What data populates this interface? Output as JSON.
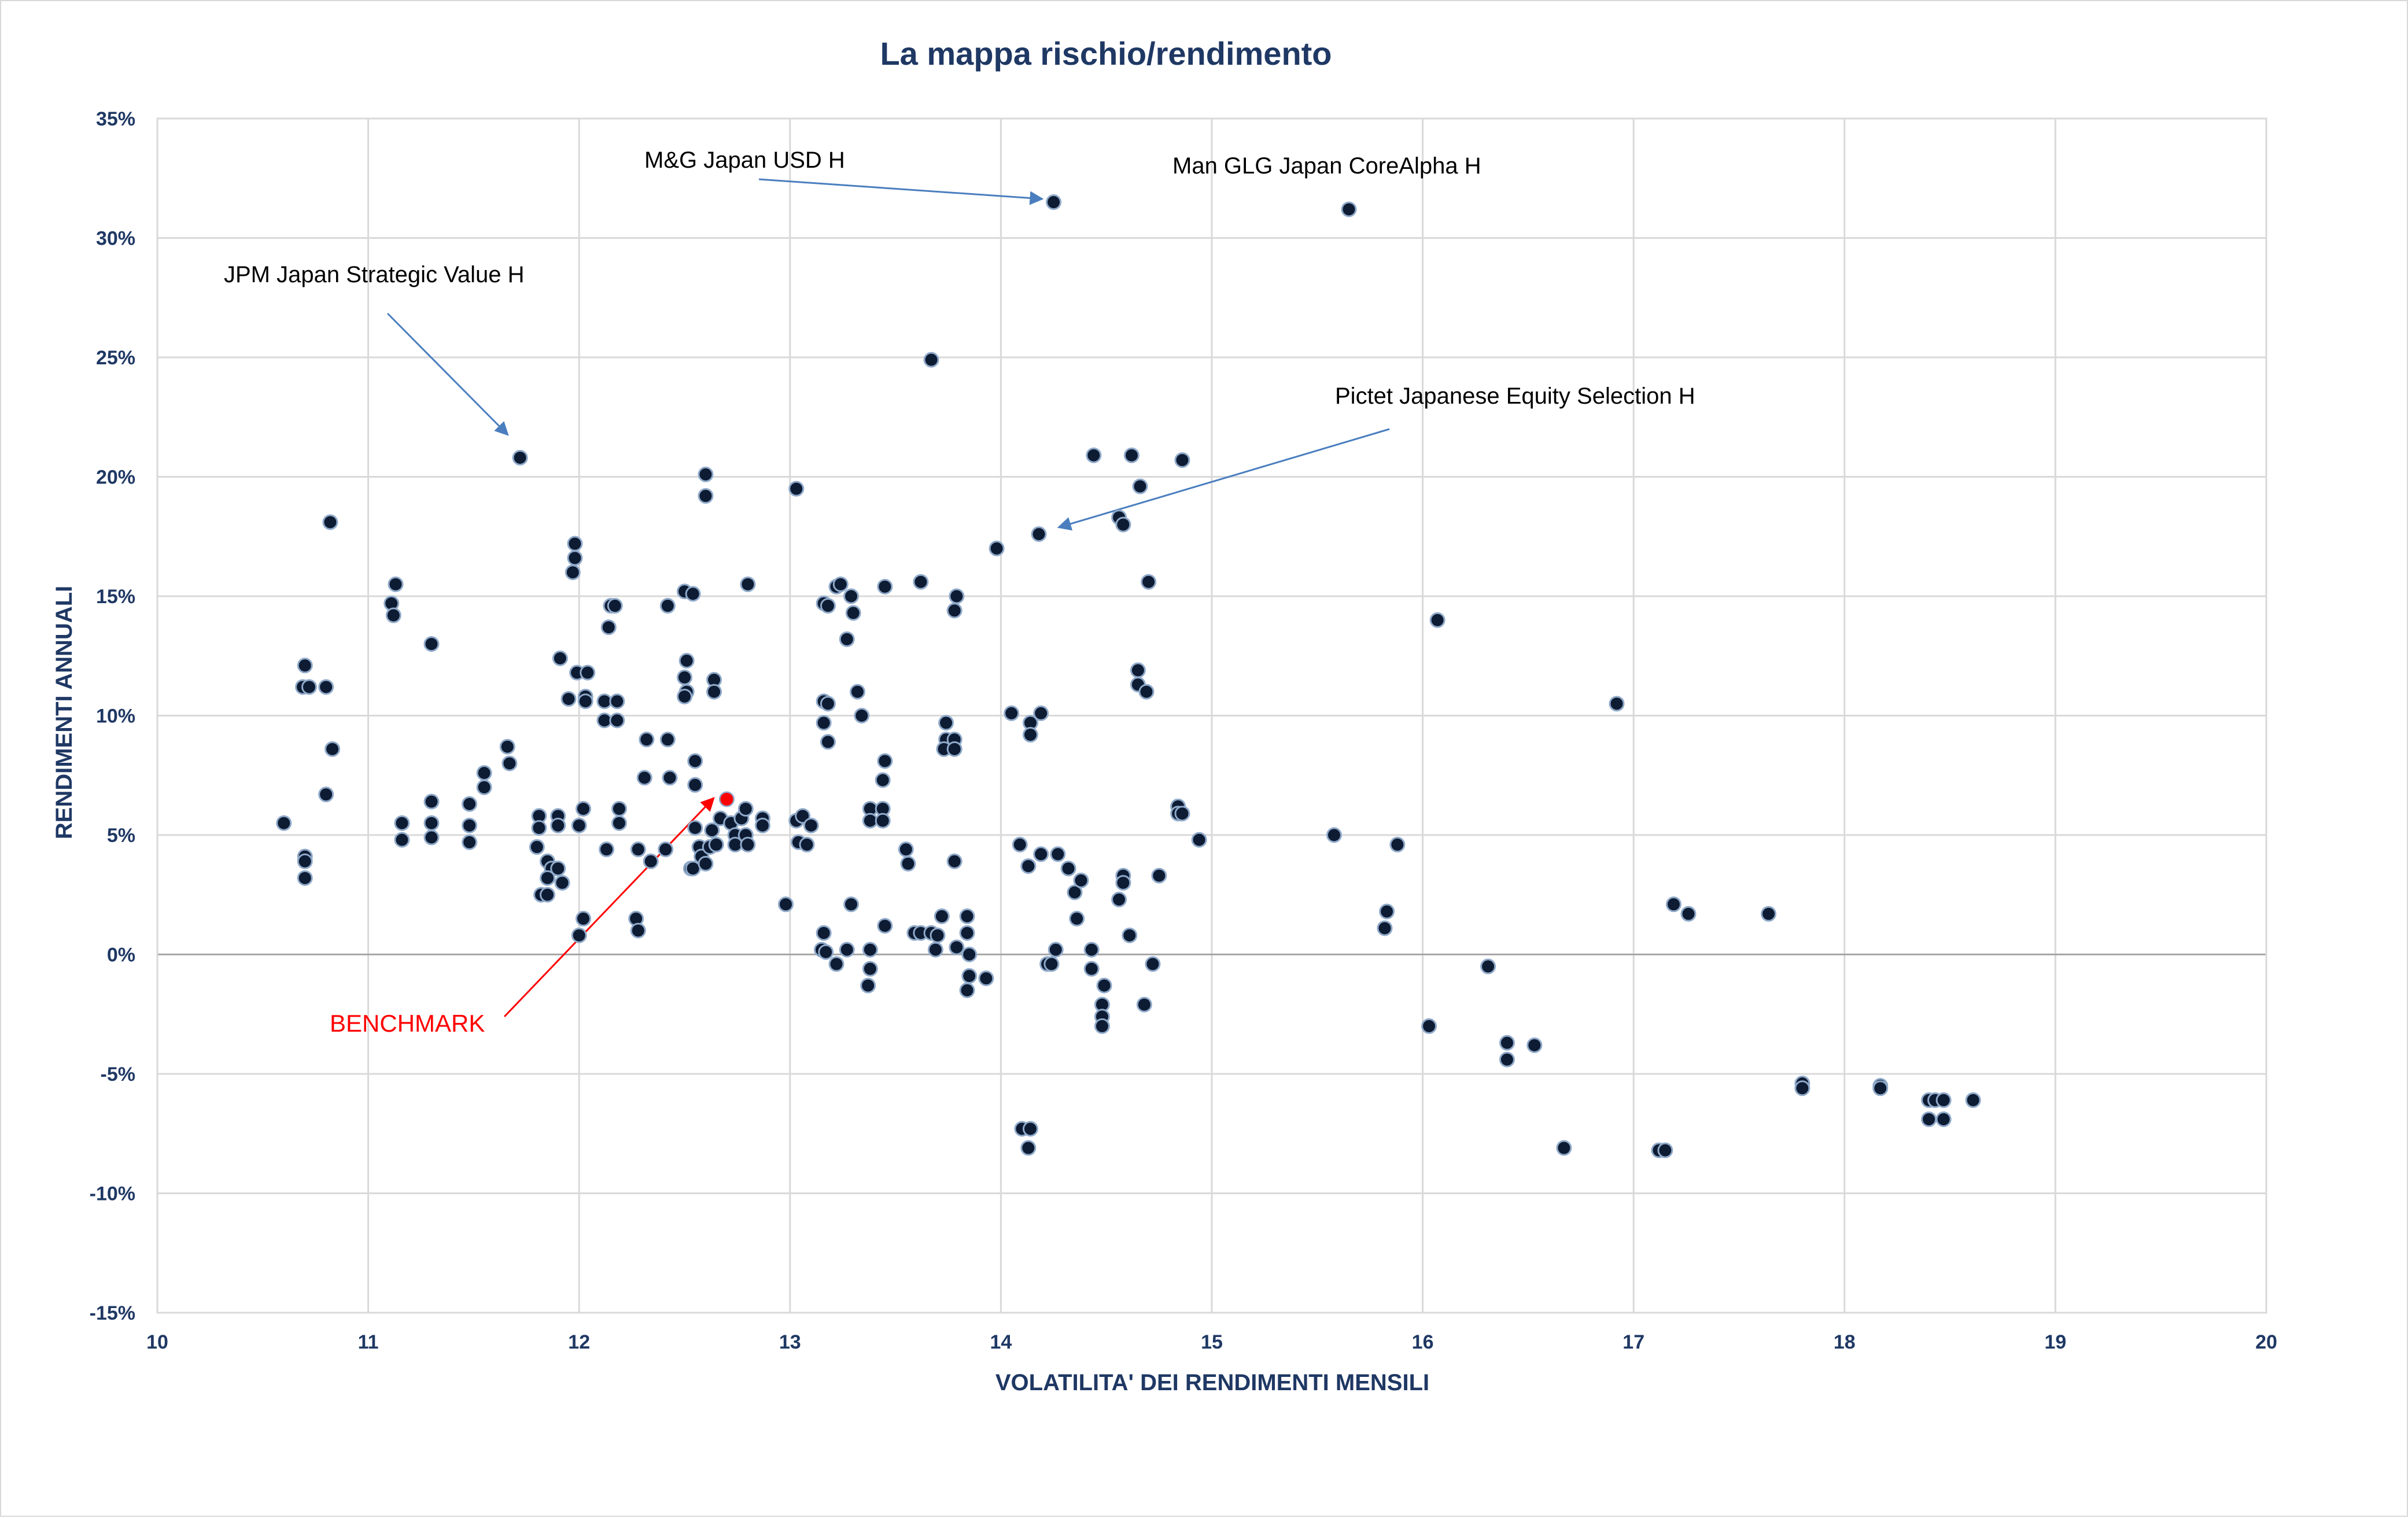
{
  "chart_data": {
    "type": "scatter",
    "title": "La mappa rischio/rendimento",
    "xlabel": "VOLATILITA' DEI RENDIMENTI MENSILI",
    "ylabel": "RENDIMENTI ANNUALI",
    "xlim": [
      10,
      20
    ],
    "ylim": [
      -15,
      35
    ],
    "x_ticks": [
      "10",
      "11",
      "12",
      "13",
      "14",
      "15",
      "16",
      "17",
      "18",
      "19",
      "20"
    ],
    "y_ticks": [
      "-15%",
      "-10%",
      "-5%",
      "0%",
      "5%",
      "10%",
      "15%",
      "20%",
      "25%",
      "30%",
      "35%"
    ],
    "grid": true,
    "colors": {
      "point": "#0d1b33",
      "point_outline": "#8fa9c9",
      "benchmark": "#ff0000",
      "annotation_arrow": "#4a7ebf",
      "title": "#1f3864"
    },
    "annotations": [
      {
        "id": "mg",
        "text": "M&G Japan USD H",
        "color": "black",
        "target": [
          14.25,
          31.5
        ]
      },
      {
        "id": "man",
        "text": "Man GLG Japan CoreAlpha H",
        "color": "black",
        "target": [
          15.65,
          31.2
        ]
      },
      {
        "id": "jpm",
        "text": "JPM Japan Strategic Value H",
        "color": "black",
        "target": [
          11.72,
          20.8
        ]
      },
      {
        "id": "pictet",
        "text": "Pictet Japanese Equity Selection H",
        "color": "black",
        "target": [
          14.18,
          17.6
        ]
      },
      {
        "id": "bench",
        "text": "BENCHMARK",
        "color": "red",
        "target": [
          12.7,
          6.5
        ]
      }
    ],
    "series": [
      {
        "points": [
          [
            14.25,
            31.5
          ],
          [
            15.65,
            31.2
          ],
          [
            13.67,
            24.9
          ],
          [
            11.72,
            20.8
          ],
          [
            12.6,
            20.1
          ],
          [
            12.6,
            19.2
          ],
          [
            13.03,
            19.5
          ],
          [
            14.18,
            17.6
          ],
          [
            14.44,
            20.9
          ],
          [
            14.62,
            20.9
          ],
          [
            14.86,
            20.7
          ],
          [
            14.66,
            19.6
          ],
          [
            14.56,
            18.3
          ],
          [
            14.58,
            18.0
          ],
          [
            13.98,
            17.0
          ],
          [
            14.7,
            15.6
          ],
          [
            10.82,
            18.1
          ],
          [
            11.98,
            17.2
          ],
          [
            11.98,
            16.6
          ],
          [
            11.97,
            16.0
          ],
          [
            11.13,
            15.5
          ],
          [
            11.11,
            14.7
          ],
          [
            11.12,
            14.2
          ],
          [
            11.3,
            13.0
          ],
          [
            12.15,
            14.6
          ],
          [
            12.17,
            14.6
          ],
          [
            12.14,
            13.7
          ],
          [
            12.42,
            14.6
          ],
          [
            12.5,
            15.2
          ],
          [
            12.54,
            15.1
          ],
          [
            12.8,
            15.5
          ],
          [
            13.22,
            15.4
          ],
          [
            13.24,
            15.5
          ],
          [
            13.29,
            15.0
          ],
          [
            13.16,
            14.7
          ],
          [
            13.18,
            14.6
          ],
          [
            13.3,
            14.3
          ],
          [
            13.27,
            13.2
          ],
          [
            13.45,
            15.4
          ],
          [
            13.62,
            15.6
          ],
          [
            13.79,
            15.0
          ],
          [
            13.78,
            14.4
          ],
          [
            11.91,
            12.4
          ],
          [
            11.99,
            11.8
          ],
          [
            12.04,
            11.8
          ],
          [
            11.95,
            10.7
          ],
          [
            12.03,
            10.8
          ],
          [
            12.03,
            10.6
          ],
          [
            12.12,
            10.6
          ],
          [
            12.18,
            10.6
          ],
          [
            12.12,
            9.8
          ],
          [
            12.18,
            9.8
          ],
          [
            12.51,
            12.3
          ],
          [
            12.5,
            11.6
          ],
          [
            12.51,
            11.0
          ],
          [
            12.5,
            10.8
          ],
          [
            12.64,
            11.5
          ],
          [
            12.64,
            11.0
          ],
          [
            10.7,
            12.1
          ],
          [
            10.69,
            11.2
          ],
          [
            10.72,
            11.2
          ],
          [
            10.8,
            11.2
          ],
          [
            10.83,
            8.6
          ],
          [
            10.8,
            6.7
          ],
          [
            10.6,
            5.5
          ],
          [
            10.7,
            4.1
          ],
          [
            10.7,
            3.9
          ],
          [
            10.7,
            3.2
          ],
          [
            11.16,
            5.5
          ],
          [
            11.16,
            4.8
          ],
          [
            11.3,
            6.4
          ],
          [
            11.3,
            5.5
          ],
          [
            11.3,
            4.9
          ],
          [
            11.48,
            6.3
          ],
          [
            11.48,
            5.4
          ],
          [
            11.48,
            4.7
          ],
          [
            11.55,
            7.6
          ],
          [
            11.55,
            7.0
          ],
          [
            11.66,
            8.7
          ],
          [
            11.67,
            8.0
          ],
          [
            11.81,
            5.8
          ],
          [
            11.81,
            5.3
          ],
          [
            11.8,
            4.5
          ],
          [
            11.82,
            2.5
          ],
          [
            11.85,
            2.5
          ],
          [
            11.85,
            3.9
          ],
          [
            11.87,
            3.6
          ],
          [
            11.85,
            3.2
          ],
          [
            11.9,
            3.6
          ],
          [
            11.92,
            3.0
          ],
          [
            11.9,
            5.8
          ],
          [
            11.9,
            5.4
          ],
          [
            12.02,
            6.1
          ],
          [
            12.0,
            5.4
          ],
          [
            12.02,
            1.5
          ],
          [
            12.0,
            0.8
          ],
          [
            12.13,
            4.4
          ],
          [
            12.19,
            6.1
          ],
          [
            12.19,
            5.5
          ],
          [
            12.28,
            4.4
          ],
          [
            12.27,
            1.5
          ],
          [
            12.28,
            1.0
          ],
          [
            12.31,
            7.4
          ],
          [
            12.32,
            9.0
          ],
          [
            12.34,
            3.9
          ],
          [
            12.41,
            4.4
          ],
          [
            12.42,
            9.0
          ],
          [
            12.43,
            7.4
          ],
          [
            12.53,
            3.6
          ],
          [
            12.54,
            3.6
          ],
          [
            12.55,
            5.3
          ],
          [
            12.55,
            8.1
          ],
          [
            12.55,
            7.1
          ],
          [
            12.57,
            4.5
          ],
          [
            12.58,
            4.1
          ],
          [
            12.6,
            3.8
          ],
          [
            12.62,
            4.5
          ],
          [
            12.63,
            5.2
          ],
          [
            12.65,
            4.6
          ],
          [
            12.67,
            5.7
          ],
          [
            12.7,
            6.5
          ],
          [
            12.72,
            5.5
          ],
          [
            12.74,
            5.0
          ],
          [
            12.74,
            4.6
          ],
          [
            12.77,
            5.7
          ],
          [
            12.79,
            6.1
          ],
          [
            12.79,
            5.0
          ],
          [
            12.8,
            4.6
          ],
          [
            12.87,
            5.7
          ],
          [
            12.87,
            5.4
          ],
          [
            12.98,
            2.1
          ],
          [
            13.03,
            5.6
          ],
          [
            13.06,
            5.8
          ],
          [
            13.04,
            4.7
          ],
          [
            13.08,
            4.6
          ],
          [
            13.1,
            5.4
          ],
          [
            13.16,
            10.6
          ],
          [
            13.18,
            10.5
          ],
          [
            13.16,
            9.7
          ],
          [
            13.18,
            8.9
          ],
          [
            13.16,
            0.9
          ],
          [
            13.15,
            0.2
          ],
          [
            13.17,
            0.1
          ],
          [
            13.22,
            -0.4
          ],
          [
            13.27,
            0.2
          ],
          [
            13.29,
            2.1
          ],
          [
            13.32,
            11.0
          ],
          [
            13.34,
            10.0
          ],
          [
            13.38,
            6.1
          ],
          [
            13.38,
            5.6
          ],
          [
            13.38,
            0.2
          ],
          [
            13.38,
            -0.6
          ],
          [
            13.37,
            -1.3
          ],
          [
            13.44,
            6.1
          ],
          [
            13.44,
            5.6
          ],
          [
            13.44,
            7.3
          ],
          [
            13.45,
            8.1
          ],
          [
            13.45,
            1.2
          ],
          [
            13.55,
            4.4
          ],
          [
            13.56,
            3.8
          ],
          [
            13.59,
            0.9
          ],
          [
            13.62,
            0.9
          ],
          [
            13.67,
            0.9
          ],
          [
            13.7,
            0.8
          ],
          [
            13.69,
            0.2
          ],
          [
            13.72,
            1.6
          ],
          [
            13.74,
            9.7
          ],
          [
            13.74,
            9.0
          ],
          [
            13.73,
            8.6
          ],
          [
            13.78,
            9.0
          ],
          [
            13.78,
            8.6
          ],
          [
            13.78,
            3.9
          ],
          [
            13.79,
            0.3
          ],
          [
            13.84,
            1.6
          ],
          [
            13.84,
            0.9
          ],
          [
            13.85,
            0.0
          ],
          [
            13.84,
            -1.5
          ],
          [
            13.85,
            -0.9
          ],
          [
            13.93,
            -1.0
          ],
          [
            14.05,
            10.1
          ],
          [
            14.09,
            4.6
          ],
          [
            14.13,
            3.7
          ],
          [
            14.14,
            9.7
          ],
          [
            14.14,
            9.2
          ],
          [
            14.19,
            10.1
          ],
          [
            14.19,
            4.2
          ],
          [
            14.22,
            -0.4
          ],
          [
            14.24,
            -0.4
          ],
          [
            14.26,
            0.2
          ],
          [
            14.27,
            4.2
          ],
          [
            14.32,
            3.6
          ],
          [
            14.35,
            2.6
          ],
          [
            14.36,
            1.5
          ],
          [
            14.38,
            3.1
          ],
          [
            14.43,
            0.2
          ],
          [
            14.43,
            -0.6
          ],
          [
            14.49,
            -1.3
          ],
          [
            14.48,
            -2.1
          ],
          [
            14.48,
            -2.6
          ],
          [
            14.48,
            -3.0
          ],
          [
            14.56,
            2.3
          ],
          [
            14.58,
            3.3
          ],
          [
            14.58,
            3.0
          ],
          [
            14.61,
            0.8
          ],
          [
            14.65,
            11.9
          ],
          [
            14.65,
            11.3
          ],
          [
            14.69,
            11.0
          ],
          [
            14.68,
            -2.1
          ],
          [
            14.72,
            -0.4
          ],
          [
            14.75,
            3.3
          ],
          [
            14.84,
            6.2
          ],
          [
            14.84,
            5.9
          ],
          [
            14.86,
            5.9
          ],
          [
            14.94,
            4.8
          ],
          [
            14.1,
            -7.3
          ],
          [
            14.14,
            -7.3
          ],
          [
            14.13,
            -8.1
          ],
          [
            15.58,
            5.0
          ],
          [
            15.88,
            4.6
          ],
          [
            15.83,
            1.8
          ],
          [
            15.82,
            1.1
          ],
          [
            16.07,
            14.0
          ],
          [
            16.03,
            -3.0
          ],
          [
            16.31,
            -0.5
          ],
          [
            16.4,
            -3.7
          ],
          [
            16.4,
            -4.4
          ],
          [
            16.53,
            -3.8
          ],
          [
            16.67,
            -8.1
          ],
          [
            16.92,
            10.5
          ],
          [
            17.12,
            -8.2
          ],
          [
            17.15,
            -8.2
          ],
          [
            17.19,
            2.1
          ],
          [
            17.26,
            1.7
          ],
          [
            17.64,
            1.7
          ],
          [
            17.8,
            -5.4
          ],
          [
            17.8,
            -5.6
          ],
          [
            18.17,
            -5.5
          ],
          [
            18.17,
            -5.6
          ],
          [
            18.4,
            -6.1
          ],
          [
            18.43,
            -6.1
          ],
          [
            18.47,
            -6.1
          ],
          [
            18.4,
            -6.9
          ],
          [
            18.47,
            -6.9
          ],
          [
            18.61,
            -6.1
          ]
        ]
      }
    ]
  }
}
